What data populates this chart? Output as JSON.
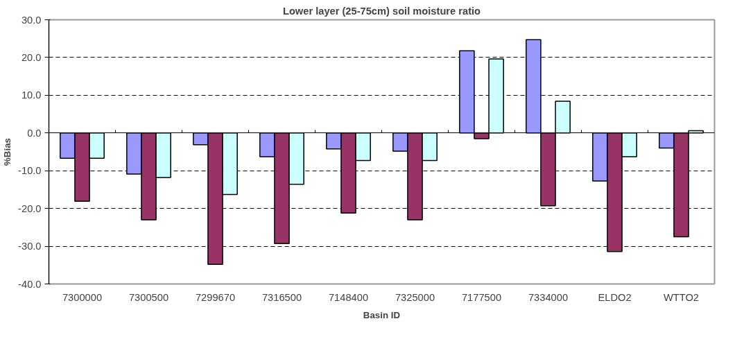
{
  "chart_data": {
    "type": "bar",
    "title": "Lower layer (25-75cm) soil moisture ratio",
    "xlabel": "Basin ID",
    "ylabel": "%Bias",
    "categories": [
      "7300000",
      "7300500",
      "7299670",
      "7316500",
      "7148400",
      "7325000",
      "7177500",
      "7334000",
      "ELDO2",
      "WTTO2"
    ],
    "series": [
      {
        "color": "#9999ff",
        "values": [
          -6.7,
          -10.9,
          -3.1,
          -6.3,
          -4.2,
          -4.8,
          21.8,
          24.7,
          -12.7,
          -4.0
        ]
      },
      {
        "color": "#993366",
        "values": [
          -18.1,
          -23.0,
          -34.8,
          -29.3,
          -21.2,
          -23.0,
          -1.5,
          -19.3,
          -31.4,
          -27.5
        ]
      },
      {
        "color": "#ccffff",
        "values": [
          -6.7,
          -11.8,
          -16.3,
          -13.6,
          -7.3,
          -7.3,
          19.6,
          8.4,
          -6.3,
          0.6
        ]
      }
    ],
    "ylim": [
      -40,
      30
    ],
    "yticks": [
      {
        "value": -40,
        "label": "-40.0"
      },
      {
        "value": -30,
        "label": "-30.0"
      },
      {
        "value": -20,
        "label": "-20.0"
      },
      {
        "value": -10,
        "label": "-10.0"
      },
      {
        "value": 0,
        "label": "0.0"
      },
      {
        "value": 10,
        "label": "10.0"
      },
      {
        "value": 20,
        "label": "20.0"
      },
      {
        "value": 30,
        "label": "30.0"
      }
    ],
    "grid": "y"
  }
}
